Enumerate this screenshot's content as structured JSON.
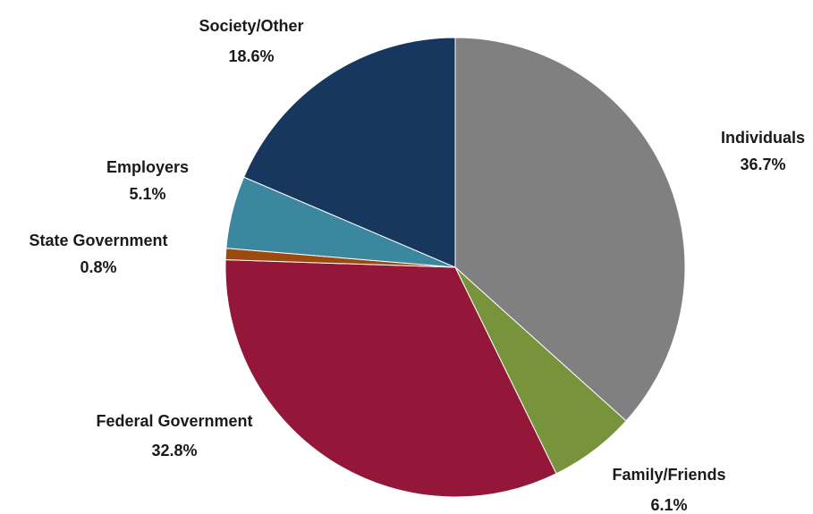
{
  "chart_data": {
    "type": "pie",
    "categories": [
      "Individuals",
      "Family/Friends",
      "Federal Government",
      "State Government",
      "Employers",
      "Society/Other"
    ],
    "values": [
      36.7,
      6.1,
      32.8,
      0.8,
      5.1,
      18.6
    ],
    "value_labels": [
      "36.7%",
      "6.1%",
      "32.8%",
      "0.8%",
      "5.1%",
      "18.6%"
    ],
    "colors": [
      "#808080",
      "#77933c",
      "#941638",
      "#9c4a0e",
      "#3a879f",
      "#17375e"
    ]
  }
}
